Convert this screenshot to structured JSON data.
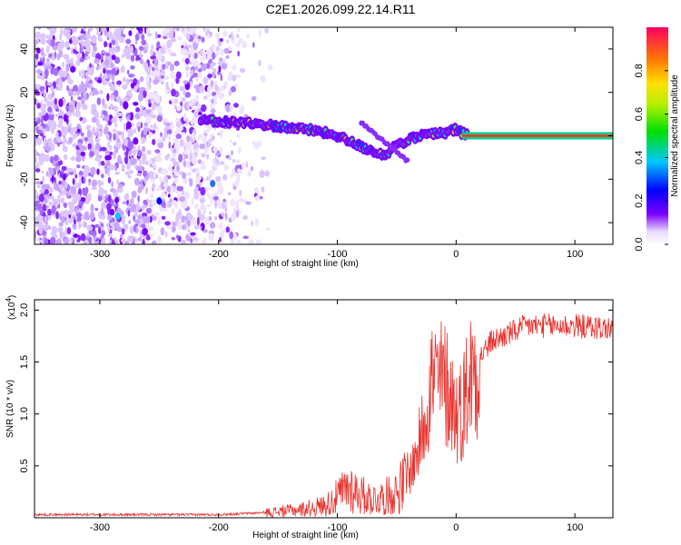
{
  "title": "C2E1.2026.099.22.14.R11",
  "chart_data": [
    {
      "type": "heatmap",
      "title": "C2E1.2026.099.22.14.R11",
      "xlabel": "Height of straight line (km)",
      "ylabel": "Frequency (Hz)",
      "xlim": [
        -355,
        132
      ],
      "ylim": [
        -50,
        50
      ],
      "xticks": [
        -300,
        -200,
        -100,
        0,
        100
      ],
      "xtick_labels": [
        "-300",
        "-200",
        "-100",
        "0",
        "100"
      ],
      "yticks": [
        -40,
        -20,
        0,
        20,
        40
      ],
      "ytick_labels": [
        "-40",
        "-20",
        "0",
        "20",
        "40"
      ],
      "ridge": {
        "x": [
          -215,
          -180,
          -150,
          -120,
          -100,
          -80,
          -60,
          -50,
          -40,
          -30,
          -20,
          -10,
          0,
          5,
          40,
          80,
          132
        ],
        "y": [
          7,
          6,
          4.5,
          2.5,
          0,
          -5,
          -9,
          -4,
          -2,
          0,
          1,
          1,
          3,
          1,
          0,
          0,
          0
        ]
      },
      "colorbar": {
        "label": "Normalized spectral amplitude",
        "range": [
          0,
          1
        ],
        "ticks": [
          0.0,
          0.2,
          0.4,
          0.6,
          0.8
        ],
        "tick_labels": [
          "0.0",
          "0.2",
          "0.4",
          "0.6",
          "0.8"
        ]
      }
    },
    {
      "type": "line",
      "xlabel": "Height of straight line (km)",
      "ylabel": "SNR (10 * v/v)",
      "y_multiplier": "(x10",
      "y_multiplier_exp": "4",
      "y_multiplier_close": ")",
      "xlim": [
        -355,
        132
      ],
      "ylim": [
        0,
        2.1
      ],
      "xticks": [
        -300,
        -200,
        -100,
        0,
        100
      ],
      "xtick_labels": [
        "-300",
        "-200",
        "-100",
        "0",
        "100"
      ],
      "yticks": [
        0.5,
        1.0,
        1.5,
        2.0
      ],
      "ytick_labels": [
        "0.5",
        "1.0",
        "1.5",
        "2.0"
      ],
      "series": [
        {
          "name": "SNR",
          "color": "#e8322d",
          "x": [
            -355,
            -250,
            -200,
            -160,
            -130,
            -110,
            -100,
            -90,
            -80,
            -70,
            -60,
            -50,
            -40,
            -35,
            -30,
            -25,
            -20,
            -15,
            -10,
            -5,
            0,
            5,
            10,
            15,
            20,
            30,
            40,
            50,
            60,
            80,
            100,
            132
          ],
          "y": [
            0.03,
            0.03,
            0.03,
            0.05,
            0.08,
            0.12,
            0.2,
            0.3,
            0.22,
            0.18,
            0.2,
            0.25,
            0.4,
            0.55,
            0.75,
            1.1,
            1.35,
            1.3,
            1.3,
            1.2,
            1.0,
            1.05,
            1.3,
            1.45,
            1.55,
            1.7,
            1.75,
            1.8,
            1.85,
            1.85,
            1.85,
            1.82
          ]
        }
      ]
    }
  ],
  "colors": {
    "line": "#e8322d",
    "bg": "#ffffff",
    "axis": "#000000"
  }
}
